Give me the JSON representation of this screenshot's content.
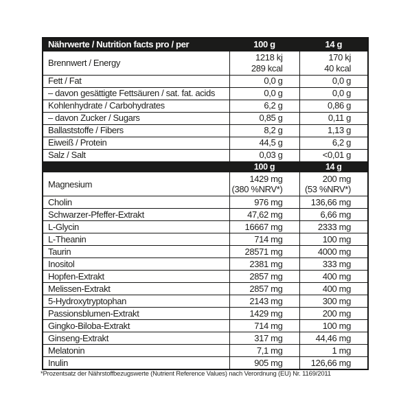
{
  "header": {
    "label": "Nährwerte / Nutrition facts pro / per",
    "per_100g": "100 g",
    "per_14g": "14 g"
  },
  "nutrition_rows": [
    {
      "label": "Brennwert / Energy",
      "per_100g": "1218 kj\n289 kcal",
      "per_14g": "170 kj\n40 kcal"
    },
    {
      "label": "Fett / Fat",
      "per_100g": "0,0 g",
      "per_14g": "0,0 g"
    },
    {
      "label": "– davon gesättigte Fettsäuren / sat. fat. acids",
      "per_100g": "0,0 g",
      "per_14g": "0,0 g"
    },
    {
      "label": "Kohlenhydrate / Carbohydrates",
      "per_100g": "6,2 g",
      "per_14g": "0,86 g"
    },
    {
      "label": "– davon Zucker / Sugars",
      "per_100g": "0,85 g",
      "per_14g": "0,11 g"
    },
    {
      "label": "Ballaststoffe / Fibers",
      "per_100g": "8,2 g",
      "per_14g": "1,13 g"
    },
    {
      "label": "Eiweiß / Protein",
      "per_100g": "44,5 g",
      "per_14g": "6,2 g"
    },
    {
      "label": "Salz / Salt",
      "per_100g": "0,03 g",
      "per_14g": "<0,01 g"
    }
  ],
  "subheader": {
    "label": "",
    "per_100g": "100 g",
    "per_14g": "14 g"
  },
  "supplement_rows": [
    {
      "label": "Magnesium",
      "per_100g": "1429 mg\n(380 %NRV*)",
      "per_14g": "200 mg\n(53 %NRV*)"
    },
    {
      "label": "Cholin",
      "per_100g": "976 mg",
      "per_14g": "136,66 mg"
    },
    {
      "label": "Schwarzer-Pfeffer-Extrakt",
      "per_100g": "47,62 mg",
      "per_14g": "6,66 mg"
    },
    {
      "label": "L-Glycin",
      "per_100g": "16667 mg",
      "per_14g": "2333 mg"
    },
    {
      "label": "L-Theanin",
      "per_100g": "714 mg",
      "per_14g": "100 mg"
    },
    {
      "label": "Taurin",
      "per_100g": "28571 mg",
      "per_14g": "4000 mg"
    },
    {
      "label": "Inositol",
      "per_100g": "2381 mg",
      "per_14g": "333 mg"
    },
    {
      "label": "Hopfen-Extrakt",
      "per_100g": "2857 mg",
      "per_14g": "400 mg"
    },
    {
      "label": "Melissen-Extrakt",
      "per_100g": "2857 mg",
      "per_14g": "400 mg"
    },
    {
      "label": "5-Hydroxytryptophan",
      "per_100g": "2143 mg",
      "per_14g": "300 mg"
    },
    {
      "label": "Passionsblumen-Extrakt",
      "per_100g": "1429 mg",
      "per_14g": "200 mg"
    },
    {
      "label": "Gingko-Biloba-Extrakt",
      "per_100g": "714 mg",
      "per_14g": "100 mg"
    },
    {
      "label": "Ginseng-Extrakt",
      "per_100g": "317 mg",
      "per_14g": "44,46 mg"
    },
    {
      "label": "Melatonin",
      "per_100g": "7,1 mg",
      "per_14g": "1 mg"
    },
    {
      "label": "Inulin",
      "per_100g": "905 mg",
      "per_14g": "126,66 mg"
    }
  ],
  "footnote": "*Prozentsatz der Nährstoffbezugswerte (Nutrient Reference Values) nach Verordnung (EU) Nr. 1169/2011",
  "colors": {
    "header_bg": "#1b1b1a",
    "header_text": "#ffffff",
    "border": "#161615",
    "text": "#1d1d1b",
    "background": "#ffffff"
  }
}
